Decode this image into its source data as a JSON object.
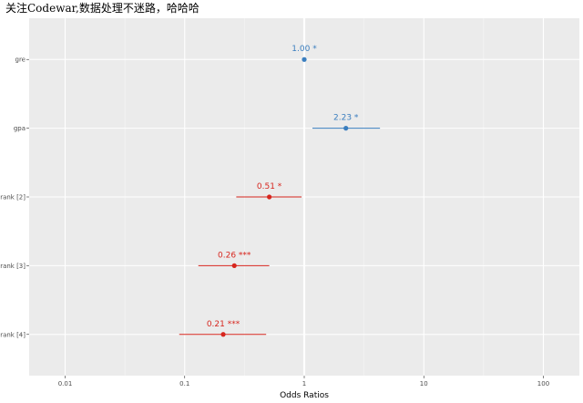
{
  "chart_data": {
    "type": "forest",
    "title": "关注Codewar,数据处理不迷路，哈哈哈",
    "xlabel": "Odds Ratios",
    "x_scale": "log10",
    "xlim": [
      0.005,
      200
    ],
    "x_ticks": [
      "0.01",
      "0.1",
      "1",
      "10",
      "100"
    ],
    "x_tick_values": [
      0.01,
      0.1,
      1,
      10,
      100
    ],
    "reference_line": 1,
    "grid": true,
    "colors": {
      "positive": "#3a7ebf",
      "negative": "#d7261e",
      "panel": "#ebebeb",
      "grid": "#ffffff"
    },
    "terms": [
      {
        "term": "gre",
        "estimate": 1.0,
        "conf_low": 1.0,
        "conf_high": 1.0,
        "label": "1.00 *",
        "effect": "positive"
      },
      {
        "term": "gpa",
        "estimate": 2.23,
        "conf_low": 1.17,
        "conf_high": 4.3,
        "label": "2.23 *",
        "effect": "positive"
      },
      {
        "term": "rank [2]",
        "estimate": 0.51,
        "conf_low": 0.27,
        "conf_high": 0.95,
        "label": "0.51 *",
        "effect": "negative"
      },
      {
        "term": "rank [3]",
        "estimate": 0.26,
        "conf_low": 0.13,
        "conf_high": 0.51,
        "label": "0.26 ***",
        "effect": "negative"
      },
      {
        "term": "rank [4]",
        "estimate": 0.21,
        "conf_low": 0.09,
        "conf_high": 0.48,
        "label": "0.21 ***",
        "effect": "negative"
      }
    ]
  }
}
